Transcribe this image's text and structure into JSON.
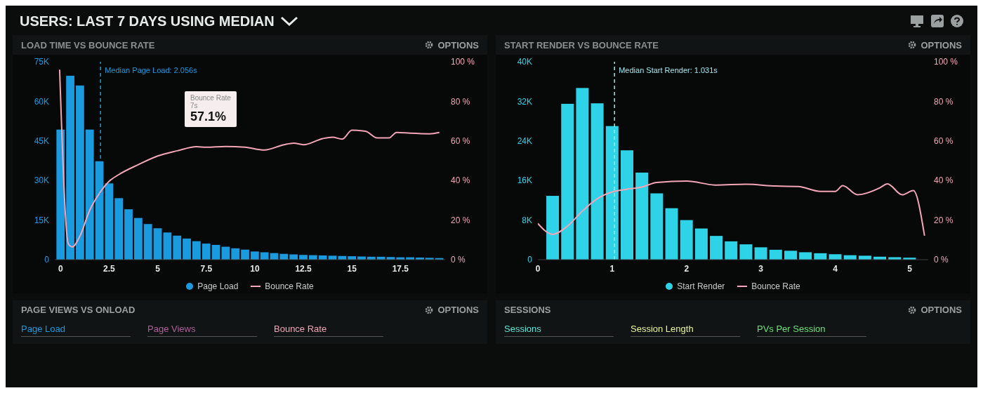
{
  "chart_data": [
    {
      "type": "other",
      "title": "USERS: LAST 7 DAYS USING MEDIAN"
    },
    {
      "type": "bar",
      "title": "LOAD TIME VS BOUNCE RATE",
      "annotations": [
        "OPTIONS",
        "Bounce Rate",
        "7s",
        "57.1%"
      ],
      "x": [
        0,
        0.5,
        1,
        1.5,
        2,
        2.5,
        3,
        3.5,
        4,
        4.5,
        5,
        5.5,
        6,
        6.5,
        7,
        7.5,
        8,
        8.5,
        9,
        9.5,
        10,
        10.5,
        11,
        11.5,
        12,
        12.5,
        13,
        13.5,
        14,
        14.5,
        15,
        15.5,
        16,
        16.5,
        17,
        17.5,
        18,
        18.5,
        19,
        19.5
      ],
      "series": [
        {
          "name": "Page Load",
          "type": "bar",
          "color": "#1a9be0",
          "values": [
            49300,
            69700,
            66000,
            49300,
            37300,
            28900,
            23300,
            19100,
            15800,
            13500,
            11900,
            10300,
            9100,
            8000,
            7000,
            6100,
            5600,
            4900,
            4300,
            3800,
            3100,
            2800,
            2500,
            2200,
            2000,
            1800,
            1700,
            1600,
            1500,
            1400,
            1300,
            1200,
            1100,
            1100,
            1000,
            900,
            900,
            800,
            700,
            600
          ]
        },
        {
          "name": "Bounce Rate",
          "type": "line",
          "axis": "y2",
          "color": "#f4a6b8",
          "x": [
            -0.05,
            0.4,
            0.6,
            1,
            1.5,
            2,
            2.5,
            3,
            4,
            5,
            6,
            7,
            7.5,
            8.5,
            9.5,
            10.5,
            11.5,
            12,
            12.5,
            13.5,
            14,
            14.5,
            15,
            15.7,
            16.3,
            16.9,
            17.3,
            18,
            19,
            19.5
          ],
          "values": [
            96,
            8,
            6.5,
            12,
            25,
            33.5,
            39.6,
            43,
            48,
            52.4,
            55,
            57.1,
            56.8,
            57.2,
            56.8,
            55.4,
            58.1,
            58.9,
            58.1,
            61.2,
            61.9,
            60.9,
            65.4,
            64.9,
            61.5,
            61.5,
            64.3,
            63.9,
            63.6,
            64.3
          ]
        }
      ],
      "xlim": [
        -0.3,
        19.8
      ],
      "xticks": [
        0,
        2.5,
        5,
        7.5,
        10,
        12.5,
        15,
        17.5
      ],
      "ylim": [
        0,
        75000
      ],
      "yticks": [
        {
          "value": 0,
          "label": "0"
        },
        {
          "value": 15000,
          "label": "15K"
        },
        {
          "value": 30000,
          "label": "30K"
        },
        {
          "value": 45000,
          "label": "45K"
        },
        {
          "value": 60000,
          "label": "60K"
        },
        {
          "value": 75000,
          "label": "75K"
        }
      ],
      "y2lim": [
        0,
        100
      ],
      "y2ticks": [
        {
          "value": 0,
          "label": "0 %"
        },
        {
          "value": 20,
          "label": "20 %"
        },
        {
          "value": 40,
          "label": "40 %"
        },
        {
          "value": 60,
          "label": "60 %"
        },
        {
          "value": 80,
          "label": "80 %"
        },
        {
          "value": 100,
          "label": "100 %"
        }
      ],
      "ref_lines": [
        {
          "axis": "x",
          "value": 2.056,
          "label": "Median Page Load: 2.056s",
          "color": "#1a9be0",
          "line_style": "dashed"
        }
      ],
      "legend": "bottom",
      "grid": false,
      "marker": "none"
    },
    {
      "type": "bar",
      "title": "START RENDER VS BOUNCE RATE",
      "annotations": [
        "OPTIONS"
      ],
      "x": [
        0.2,
        0.4,
        0.6,
        0.8,
        1,
        1.2,
        1.4,
        1.6,
        1.8,
        2,
        2.2,
        2.4,
        2.6,
        2.8,
        3,
        3.2,
        3.4,
        3.6,
        3.8,
        4,
        4.2,
        4.4,
        4.6,
        4.8,
        5
      ],
      "series": [
        {
          "name": "Start Render",
          "type": "bar",
          "color": "#2ed3e8",
          "values": [
            12900,
            31500,
            34700,
            31600,
            27000,
            22100,
            17600,
            13400,
            10400,
            8000,
            6300,
            4800,
            3700,
            3100,
            2500,
            2000,
            1800,
            1500,
            1300,
            1100,
            900,
            800,
            600,
            500,
            400
          ]
        },
        {
          "name": "Bounce Rate",
          "type": "line",
          "axis": "y2",
          "color": "#f4a6b8",
          "x": [
            0,
            0.2,
            0.4,
            0.6,
            0.8,
            1,
            1.2,
            1.4,
            1.6,
            2,
            2.4,
            2.8,
            3.2,
            3.5,
            3.8,
            4,
            4.1,
            4.3,
            4.6,
            4.7,
            4.9,
            5.05,
            5.2
          ],
          "values": [
            18.3,
            12.8,
            17,
            24.6,
            30.8,
            34.2,
            35.6,
            36.7,
            39,
            39.7,
            37.7,
            38.1,
            37.2,
            37,
            34.5,
            34.5,
            37.4,
            32.8,
            36.3,
            38.3,
            32.8,
            34.9,
            12.1
          ]
        }
      ],
      "xlim": [
        0,
        5.25
      ],
      "xticks": [
        0,
        1,
        2,
        3,
        4,
        5
      ],
      "ylim": [
        0,
        40000
      ],
      "yticks": [
        {
          "value": 0,
          "label": "0"
        },
        {
          "value": 8000,
          "label": "8K"
        },
        {
          "value": 16000,
          "label": "16K"
        },
        {
          "value": 24000,
          "label": "24K"
        },
        {
          "value": 32000,
          "label": "32K"
        },
        {
          "value": 40000,
          "label": "40K"
        }
      ],
      "y2lim": [
        0,
        100
      ],
      "y2ticks": [
        {
          "value": 0,
          "label": "0 %"
        },
        {
          "value": 20,
          "label": "20 %"
        },
        {
          "value": 40,
          "label": "40 %"
        },
        {
          "value": 60,
          "label": "60 %"
        },
        {
          "value": 80,
          "label": "80 %"
        },
        {
          "value": 100,
          "label": "100 %"
        }
      ],
      "ref_lines": [
        {
          "axis": "x",
          "value": 1.031,
          "label": "Median Start Render: 1.031s",
          "color": "#9fe8f0",
          "line_style": "dashed"
        }
      ],
      "legend": "bottom",
      "grid": false,
      "marker": "none"
    },
    {
      "type": "other",
      "title": "PAGE VIEWS VS ONLOAD",
      "annotations": [
        "OPTIONS",
        "Page Load",
        "Page Views",
        "Bounce Rate"
      ],
      "colors": [
        "#9aa0a0",
        "#1a9be0",
        "#b0609a",
        "#f4a6b8"
      ]
    },
    {
      "type": "other",
      "title": "SESSIONS",
      "annotations": [
        "OPTIONS",
        "Sessions",
        "Session Length",
        "PVs Per Session"
      ],
      "colors": [
        "#9aa0a0",
        "#5ce8d8",
        "#e6f59a",
        "#6ee07a"
      ]
    }
  ]
}
